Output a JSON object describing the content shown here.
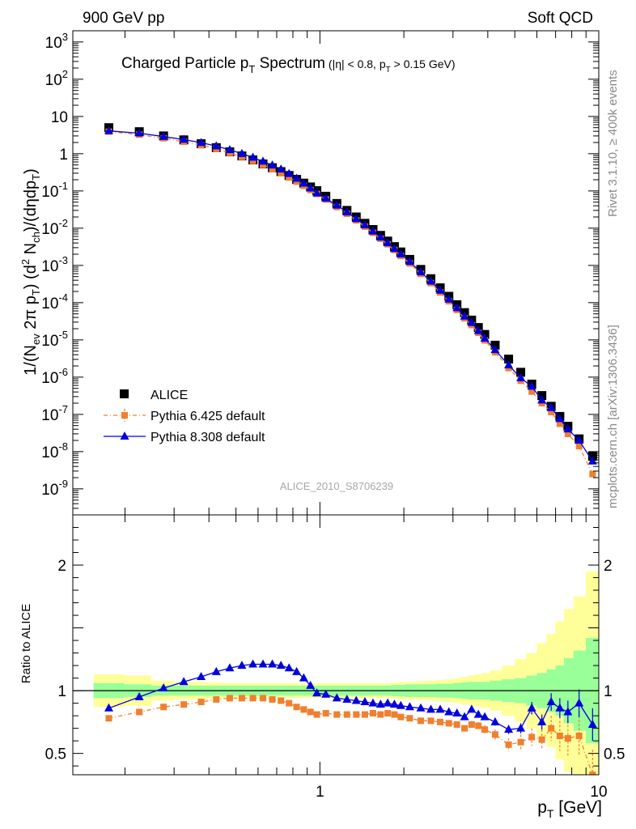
{
  "header": {
    "left": "900 GeV pp",
    "right": "Soft QCD"
  },
  "title": {
    "main": "Charged Particle p",
    "main_sub": "T",
    "main_tail": " Spectrum",
    "cuts_a": "(|η| < 0.8, p",
    "cuts_sub": "T",
    "cuts_b": " > 0.15 GeV)"
  },
  "side_labels": {
    "rivet": "Rivet 3.1.10, ≥ 400k events",
    "mcplots": "mcplots.cern.ch [arXiv:1306.3436]"
  },
  "analysis_label": "ALICE_2010_S8706239",
  "y_axis_label": {
    "p1": "1/(N",
    "s1": "ev",
    "p2": " 2π p",
    "s2": "T",
    "p3": ") (d",
    "sup": "2",
    "p4": " N",
    "s4": "ch",
    "p5": ")/(dηdp",
    "s5": "T",
    "p6": ")"
  },
  "ratio_label": "Ratio to ALICE",
  "x_axis_label": {
    "main": "p",
    "sub": "T",
    "tail": " [GeV]"
  },
  "legend": [
    {
      "label": "ALICE",
      "color": "#000000",
      "marker": "square-icon"
    },
    {
      "label": "Pythia 6.425 default",
      "color": "#f07f2f",
      "marker": "small-square-icon"
    },
    {
      "label": "Pythia 8.308 default",
      "color": "#0000dd",
      "marker": "triangle-icon"
    }
  ],
  "chart_data": {
    "type": "scatter",
    "x_scale": "log",
    "xlim": [
      0.13,
      10
    ],
    "x_ticks_labeled": [
      {
        "value": 1,
        "label": "1"
      },
      {
        "value": 10,
        "label": "10"
      }
    ],
    "main_panel": {
      "y_scale": "log",
      "ylim": [
        2e-10,
        2000
      ],
      "y_ticks": [
        {
          "value": 1000.0,
          "base": "10",
          "exp": "3"
        },
        {
          "value": 100.0,
          "base": "10",
          "exp": "2"
        },
        {
          "value": 10,
          "base": "10",
          "exp": ""
        },
        {
          "value": 1,
          "base": "1",
          "exp": ""
        },
        {
          "value": 0.1,
          "base": "10",
          "exp": "-1"
        },
        {
          "value": 0.01,
          "base": "10",
          "exp": "-2"
        },
        {
          "value": 0.001,
          "base": "10",
          "exp": "-3"
        },
        {
          "value": 0.0001,
          "base": "10",
          "exp": "-4"
        },
        {
          "value": 1e-05,
          "base": "10",
          "exp": "-5"
        },
        {
          "value": 1e-06,
          "base": "10",
          "exp": "-6"
        },
        {
          "value": 1e-07,
          "base": "10",
          "exp": "-7"
        },
        {
          "value": 1e-08,
          "base": "10",
          "exp": "-8"
        },
        {
          "value": 1e-09,
          "base": "10",
          "exp": "-9"
        }
      ]
    },
    "ratio_panel": {
      "ylim": [
        0.33,
        2.4
      ],
      "y_ticks": [
        {
          "value": 2,
          "label": "2"
        },
        {
          "value": 1,
          "label": "1"
        },
        {
          "value": 0.5,
          "label": "0.5"
        }
      ]
    },
    "x": [
      0.175,
      0.225,
      0.275,
      0.325,
      0.375,
      0.425,
      0.475,
      0.525,
      0.575,
      0.625,
      0.675,
      0.725,
      0.775,
      0.825,
      0.875,
      0.925,
      0.975,
      1.05,
      1.15,
      1.25,
      1.35,
      1.45,
      1.55,
      1.65,
      1.75,
      1.85,
      1.95,
      2.1,
      2.3,
      2.5,
      2.7,
      2.9,
      3.1,
      3.3,
      3.5,
      3.7,
      3.9,
      4.25,
      4.75,
      5.25,
      5.75,
      6.25,
      6.75,
      7.25,
      7.75,
      8.5,
      9.5
    ],
    "series": [
      {
        "name": "ALICE",
        "color": "#000000",
        "values": [
          5.0,
          3.9,
          3.0,
          2.35,
          1.85,
          1.45,
          1.12,
          0.87,
          0.68,
          0.53,
          0.42,
          0.33,
          0.26,
          0.205,
          0.162,
          0.128,
          0.102,
          0.072,
          0.046,
          0.03,
          0.02,
          0.0135,
          0.0092,
          0.0064,
          0.0045,
          0.0032,
          0.0023,
          0.00145,
          0.00078,
          0.00044,
          0.00025,
          0.000148,
          8.8e-05,
          5.4e-05,
          3.4e-05,
          2.15e-05,
          1.4e-05,
          7.2e-06,
          3.05e-06,
          1.35e-06,
          6.5e-07,
          3.2e-07,
          1.65e-07,
          8.8e-08,
          4.8e-08,
          2.2e-08,
          7.5e-09
        ],
        "ratio_band_inner": [
          0.06,
          0.05,
          0.04,
          0.04,
          0.04,
          0.04,
          0.04,
          0.04,
          0.04,
          0.04,
          0.04,
          0.04,
          0.04,
          0.04,
          0.04,
          0.04,
          0.04,
          0.04,
          0.04,
          0.04,
          0.04,
          0.04,
          0.04,
          0.04,
          0.04,
          0.045,
          0.045,
          0.05,
          0.05,
          0.05,
          0.055,
          0.055,
          0.06,
          0.065,
          0.07,
          0.07,
          0.07,
          0.08,
          0.09,
          0.1,
          0.12,
          0.14,
          0.17,
          0.2,
          0.26,
          0.32,
          0.42
        ],
        "ratio_band_outer": [
          0.13,
          0.12,
          0.08,
          0.07,
          0.07,
          0.065,
          0.06,
          0.06,
          0.06,
          0.06,
          0.06,
          0.06,
          0.06,
          0.06,
          0.06,
          0.06,
          0.06,
          0.06,
          0.06,
          0.06,
          0.06,
          0.06,
          0.06,
          0.06,
          0.06,
          0.065,
          0.07,
          0.07,
          0.075,
          0.08,
          0.085,
          0.09,
          0.1,
          0.11,
          0.12,
          0.13,
          0.14,
          0.16,
          0.2,
          0.25,
          0.3,
          0.38,
          0.45,
          0.55,
          0.65,
          0.75,
          0.95
        ]
      },
      {
        "name": "Pythia 6.425 default",
        "color": "#f07f2f",
        "values": [
          3.9,
          3.25,
          2.6,
          2.1,
          1.7,
          1.35,
          1.05,
          0.82,
          0.64,
          0.5,
          0.39,
          0.3,
          0.23,
          0.178,
          0.138,
          0.106,
          0.083,
          0.059,
          0.037,
          0.0244,
          0.0162,
          0.011,
          0.0075,
          0.0052,
          0.0037,
          0.0026,
          0.0018,
          0.00113,
          0.000595,
          0.000336,
          0.000188,
          0.000109,
          6.4e-05,
          3.8e-05,
          2.5e-05,
          1.55e-05,
          9.7e-06,
          4.65e-06,
          1.75e-06,
          8e-07,
          4.1e-07,
          2e-07,
          1.16e-07,
          5.6e-08,
          3e-08,
          1.4e-08,
          2.5e-09
        ],
        "ratio": [
          0.78,
          0.83,
          0.87,
          0.89,
          0.91,
          0.93,
          0.94,
          0.94,
          0.94,
          0.94,
          0.93,
          0.92,
          0.9,
          0.87,
          0.85,
          0.83,
          0.81,
          0.82,
          0.81,
          0.81,
          0.81,
          0.81,
          0.82,
          0.81,
          0.82,
          0.81,
          0.79,
          0.78,
          0.76,
          0.76,
          0.75,
          0.74,
          0.73,
          0.7,
          0.73,
          0.72,
          0.69,
          0.65,
          0.57,
          0.59,
          0.63,
          0.61,
          0.7,
          0.64,
          0.62,
          0.64,
          0.33
        ],
        "ratio_err": [
          0,
          0,
          0,
          0,
          0,
          0,
          0,
          0,
          0,
          0,
          0,
          0,
          0,
          0,
          0,
          0,
          0,
          0,
          0,
          0,
          0,
          0,
          0,
          0,
          0,
          0,
          0,
          0.01,
          0.01,
          0.01,
          0.015,
          0.015,
          0.02,
          0.025,
          0.03,
          0.03,
          0.035,
          0.04,
          0.05,
          0.06,
          0.07,
          0.08,
          0.1,
          0.12,
          0.14,
          0.16,
          0.2
        ]
      },
      {
        "name": "Pythia 8.308 default",
        "color": "#0000dd",
        "values": [
          4.1,
          3.55,
          2.88,
          2.4,
          1.98,
          1.6,
          1.27,
          1.0,
          0.79,
          0.62,
          0.49,
          0.38,
          0.29,
          0.215,
          0.16,
          0.118,
          0.087,
          0.063,
          0.041,
          0.0269,
          0.0178,
          0.0121,
          0.0082,
          0.0057,
          0.004,
          0.0028,
          0.002,
          0.00126,
          0.000659,
          0.000374,
          0.000213,
          0.000123,
          7.2e-05,
          4.3e-05,
          2.9e-05,
          1.75e-05,
          1.1e-05,
          5.4e-06,
          2.1e-06,
          9.5e-07,
          5.6e-07,
          2.4e-07,
          1.5e-07,
          7.6e-08,
          4e-08,
          2e-08,
          5.5e-09
        ],
        "ratio": [
          0.86,
          0.95,
          1.02,
          1.07,
          1.11,
          1.15,
          1.18,
          1.2,
          1.21,
          1.21,
          1.21,
          1.2,
          1.18,
          1.15,
          1.1,
          1.04,
          0.98,
          0.97,
          0.94,
          0.93,
          0.92,
          0.91,
          0.9,
          0.89,
          0.9,
          0.89,
          0.88,
          0.87,
          0.86,
          0.85,
          0.85,
          0.83,
          0.82,
          0.79,
          0.85,
          0.81,
          0.79,
          0.75,
          0.69,
          0.7,
          0.86,
          0.75,
          0.91,
          0.86,
          0.83,
          0.9,
          0.73
        ],
        "ratio_err": [
          0,
          0,
          0,
          0,
          0,
          0,
          0,
          0,
          0,
          0,
          0,
          0,
          0,
          0,
          0,
          0,
          0,
          0,
          0,
          0,
          0,
          0,
          0,
          0,
          0,
          0,
          0,
          0.01,
          0.01,
          0.01,
          0.01,
          0.015,
          0.015,
          0.02,
          0.02,
          0.02,
          0.025,
          0.03,
          0.035,
          0.04,
          0.05,
          0.06,
          0.07,
          0.08,
          0.09,
          0.11,
          0.13
        ]
      }
    ]
  }
}
